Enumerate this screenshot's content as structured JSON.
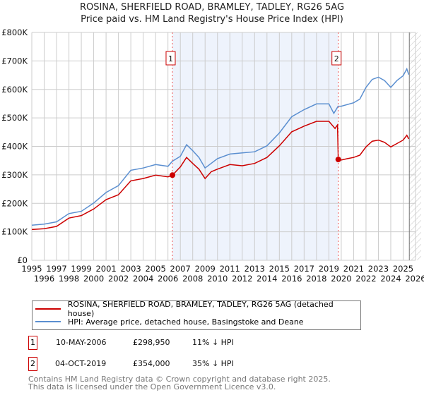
{
  "title": "ROSINA, SHERFIELD ROAD, BRAMLEY, TADLEY, RG26 5AG",
  "subtitle": "Price paid vs. HM Land Registry's House Price Index (HPI)",
  "colors": {
    "property": "#cc0000",
    "hpi": "#5b8fd0",
    "shade": "#eef3fc"
  },
  "chart_data": {
    "type": "line",
    "title": "ROSINA, SHERFIELD ROAD, BRAMLEY, TADLEY, RG26 5AG",
    "xlim": [
      1995,
      2026
    ],
    "ylim": [
      0,
      800000
    ],
    "x_ticks": [
      "1995",
      "1996",
      "1997",
      "1998",
      "1999",
      "2000",
      "2001",
      "2002",
      "2003",
      "2004",
      "2005",
      "2006",
      "2007",
      "2008",
      "2009",
      "2010",
      "2011",
      "2012",
      "2013",
      "2014",
      "2015",
      "2016",
      "2017",
      "2018",
      "2019",
      "2020",
      "2021",
      "2022",
      "2023",
      "2024",
      "2025",
      "2026"
    ],
    "y_ticks": [
      {
        "v": 0,
        "label": "£0"
      },
      {
        "v": 100000,
        "label": "£100K"
      },
      {
        "v": 200000,
        "label": "£200K"
      },
      {
        "v": 300000,
        "label": "£300K"
      },
      {
        "v": 400000,
        "label": "£400K"
      },
      {
        "v": 500000,
        "label": "£500K"
      },
      {
        "v": 600000,
        "label": "£600K"
      },
      {
        "v": 700000,
        "label": "£700K"
      },
      {
        "v": 800000,
        "label": "£800K"
      }
    ],
    "grid": true,
    "series": [
      {
        "name": "ROSINA, SHERFIELD ROAD, BRAMLEY, TADLEY, RG26 5AG (detached house)",
        "x": [
          1995,
          1996,
          1997,
          1998,
          1999,
          2000,
          2001,
          2002,
          2003,
          2004,
          2005,
          2006,
          2006.36,
          2007,
          2007.5,
          2008,
          2008.5,
          2009,
          2009.5,
          2010,
          2011,
          2012,
          2013,
          2014,
          2015,
          2016,
          2017,
          2018,
          2019,
          2019.5,
          2019.7,
          2019.76,
          2020,
          2020.5,
          2021,
          2021.5,
          2022,
          2022.5,
          2023,
          2023.5,
          2024,
          2024.5,
          2025,
          2025.3,
          2025.45
        ],
        "y": [
          108000,
          111000,
          119000,
          148000,
          157000,
          180000,
          213000,
          230000,
          279000,
          287000,
          299000,
          293000,
          298950,
          328000,
          361000,
          340000,
          320000,
          287000,
          311000,
          320000,
          336000,
          332000,
          340000,
          361000,
          402000,
          451000,
          471000,
          488000,
          488000,
          463000,
          475000,
          354000,
          352000,
          357000,
          361000,
          369000,
          398000,
          418000,
          422000,
          414000,
          398000,
          410000,
          422000,
          439000,
          426000
        ]
      },
      {
        "name": "HPI: Average price, detached house, Basingstoke and Deane",
        "x": [
          1995,
          1996,
          1997,
          1998,
          1999,
          2000,
          2001,
          2002,
          2003,
          2004,
          2005,
          2006,
          2006.36,
          2007,
          2007.5,
          2008,
          2008.5,
          2009,
          2010,
          2011,
          2012,
          2013,
          2014,
          2015,
          2016,
          2017,
          2018,
          2019,
          2019.4,
          2019.75,
          2020,
          2021,
          2021.5,
          2022,
          2022.5,
          2023,
          2023.5,
          2024,
          2024.5,
          2025,
          2025.3,
          2025.45
        ],
        "y": [
          123000,
          127000,
          135000,
          164000,
          172000,
          201000,
          238000,
          262000,
          316000,
          324000,
          336000,
          330000,
          348000,
          365000,
          406000,
          385000,
          361000,
          324000,
          357000,
          373000,
          377000,
          381000,
          402000,
          447000,
          504000,
          529000,
          549000,
          549000,
          516000,
          541000,
          541000,
          553000,
          566000,
          607000,
          635000,
          643000,
          631000,
          607000,
          631000,
          648000,
          672000,
          652000
        ]
      }
    ],
    "annotations": [
      {
        "label": "1",
        "x": 2006.36,
        "y": 298950
      },
      {
        "label": "2",
        "x": 2019.76,
        "y": 354000
      }
    ],
    "shaded_range": [
      2006.36,
      2019.76
    ],
    "forecast_hatch_from": 2025.5,
    "legend_position": "bottom"
  },
  "legend": {
    "property": "ROSINA, SHERFIELD ROAD, BRAMLEY, TADLEY, RG26 5AG (detached house)",
    "hpi": "HPI: Average price, detached house, Basingstoke and Deane"
  },
  "transactions": [
    {
      "num": "1",
      "date": "10-MAY-2006",
      "price": "£298,950",
      "diff": "11% ↓ HPI"
    },
    {
      "num": "2",
      "date": "04-OCT-2019",
      "price": "£354,000",
      "diff": "35% ↓ HPI"
    }
  ],
  "footer": {
    "line1": "Contains HM Land Registry data © Crown copyright and database right 2025.",
    "line2": "This data is licensed under the Open Government Licence v3.0."
  }
}
